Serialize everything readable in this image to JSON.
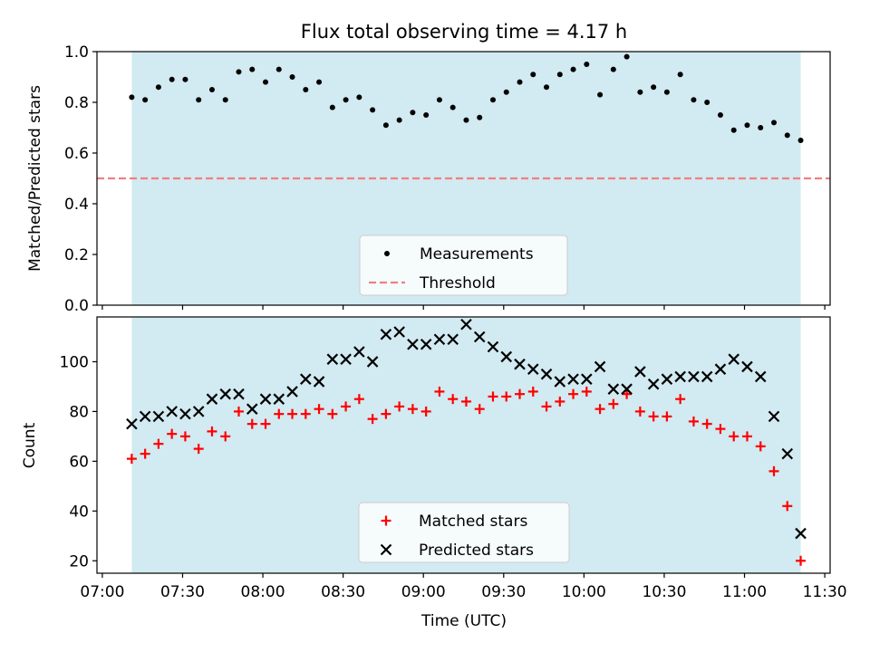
{
  "colors": {
    "band": "#add8e6",
    "measurement": "#000000",
    "threshold": "#f08080",
    "matched": "#ff0000",
    "predicted": "#000000"
  },
  "chart_data": [
    {
      "type": "scatter",
      "title": "Flux total observing time = 4.17 h",
      "xlabel": "",
      "ylabel": "Matched/Predicted stars",
      "xlim": [
        "06:58",
        "11:32"
      ],
      "ylim": [
        0.0,
        1.0
      ],
      "y_ticks": [
        "0.0",
        "0.2",
        "0.4",
        "0.6",
        "0.8",
        "1.0"
      ],
      "observing_window": [
        "07:11",
        "11:21"
      ],
      "threshold": 0.5,
      "legend": {
        "placement": "lower-center",
        "entries": [
          "Measurements",
          "Threshold"
        ]
      },
      "series": [
        {
          "name": "Measurements",
          "marker": "dot",
          "x": [
            "07:11",
            "07:16",
            "07:21",
            "07:26",
            "07:31",
            "07:36",
            "07:41",
            "07:46",
            "07:51",
            "07:56",
            "08:01",
            "08:06",
            "08:11",
            "08:16",
            "08:21",
            "08:26",
            "08:31",
            "08:36",
            "08:41",
            "08:46",
            "08:51",
            "08:56",
            "09:01",
            "09:06",
            "09:11",
            "09:16",
            "09:21",
            "09:26",
            "09:31",
            "09:36",
            "09:41",
            "09:46",
            "09:51",
            "09:56",
            "10:01",
            "10:06",
            "10:11",
            "10:16",
            "10:21",
            "10:26",
            "10:31",
            "10:36",
            "10:41",
            "10:46",
            "10:51",
            "10:56",
            "11:01",
            "11:06",
            "11:11",
            "11:16",
            "11:21"
          ],
          "y": [
            0.82,
            0.81,
            0.86,
            0.89,
            0.89,
            0.81,
            0.85,
            0.81,
            0.92,
            0.93,
            0.88,
            0.93,
            0.9,
            0.85,
            0.88,
            0.78,
            0.81,
            0.82,
            0.77,
            0.71,
            0.73,
            0.76,
            0.75,
            0.81,
            0.78,
            0.73,
            0.74,
            0.81,
            0.84,
            0.88,
            0.91,
            0.86,
            0.91,
            0.93,
            0.95,
            0.83,
            0.93,
            0.98,
            0.84,
            0.86,
            0.84,
            0.91,
            0.81,
            0.8,
            0.75,
            0.69,
            0.71,
            0.7,
            0.72,
            0.67,
            0.65
          ]
        },
        {
          "name": "Threshold",
          "marker": "dashed-line",
          "y": 0.5
        }
      ]
    },
    {
      "type": "scatter",
      "title": "",
      "xlabel": "Time (UTC)",
      "ylabel": "Count",
      "xlim": [
        "06:58",
        "11:32"
      ],
      "ylim": [
        15,
        118
      ],
      "y_ticks": [
        "20",
        "40",
        "60",
        "80",
        "100"
      ],
      "x_ticks": [
        "07:00",
        "07:30",
        "08:00",
        "08:30",
        "09:00",
        "09:30",
        "10:00",
        "10:30",
        "11:00",
        "11:30"
      ],
      "observing_window": [
        "07:11",
        "11:21"
      ],
      "legend": {
        "placement": "lower-center",
        "entries": [
          "Matched stars",
          "Predicted stars"
        ]
      },
      "series": [
        {
          "name": "Matched stars",
          "marker": "plus",
          "x": [
            "07:11",
            "07:16",
            "07:21",
            "07:26",
            "07:31",
            "07:36",
            "07:41",
            "07:46",
            "07:51",
            "07:56",
            "08:01",
            "08:06",
            "08:11",
            "08:16",
            "08:21",
            "08:26",
            "08:31",
            "08:36",
            "08:41",
            "08:46",
            "08:51",
            "08:56",
            "09:01",
            "09:06",
            "09:11",
            "09:16",
            "09:21",
            "09:26",
            "09:31",
            "09:36",
            "09:41",
            "09:46",
            "09:51",
            "09:56",
            "10:01",
            "10:06",
            "10:11",
            "10:16",
            "10:21",
            "10:26",
            "10:31",
            "10:36",
            "10:41",
            "10:46",
            "10:51",
            "10:56",
            "11:01",
            "11:06",
            "11:11",
            "11:16",
            "11:21"
          ],
          "y": [
            61,
            63,
            67,
            71,
            70,
            65,
            72,
            70,
            80,
            75,
            75,
            79,
            79,
            79,
            81,
            79,
            82,
            85,
            77,
            79,
            82,
            81,
            80,
            88,
            85,
            84,
            81,
            86,
            86,
            87,
            88,
            82,
            84,
            87,
            88,
            81,
            83,
            87,
            80,
            78,
            78,
            85,
            76,
            75,
            73,
            70,
            70,
            66,
            56,
            42,
            20
          ]
        },
        {
          "name": "Predicted stars",
          "marker": "x",
          "x": [
            "07:11",
            "07:16",
            "07:21",
            "07:26",
            "07:31",
            "07:36",
            "07:41",
            "07:46",
            "07:51",
            "07:56",
            "08:01",
            "08:06",
            "08:11",
            "08:16",
            "08:21",
            "08:26",
            "08:31",
            "08:36",
            "08:41",
            "08:46",
            "08:51",
            "08:56",
            "09:01",
            "09:06",
            "09:11",
            "09:16",
            "09:21",
            "09:26",
            "09:31",
            "09:36",
            "09:41",
            "09:46",
            "09:51",
            "09:56",
            "10:01",
            "10:06",
            "10:11",
            "10:16",
            "10:21",
            "10:26",
            "10:31",
            "10:36",
            "10:41",
            "10:46",
            "10:51",
            "10:56",
            "11:01",
            "11:06",
            "11:11",
            "11:16",
            "11:21"
          ],
          "y": [
            75,
            78,
            78,
            80,
            79,
            80,
            85,
            87,
            87,
            81,
            85,
            85,
            88,
            93,
            92,
            101,
            101,
            104,
            100,
            111,
            112,
            107,
            107,
            109,
            109,
            115,
            110,
            106,
            102,
            99,
            97,
            95,
            92,
            93,
            93,
            98,
            89,
            89,
            96,
            91,
            93,
            94,
            94,
            94,
            97,
            101,
            98,
            94,
            78,
            63,
            31
          ]
        }
      ]
    }
  ]
}
